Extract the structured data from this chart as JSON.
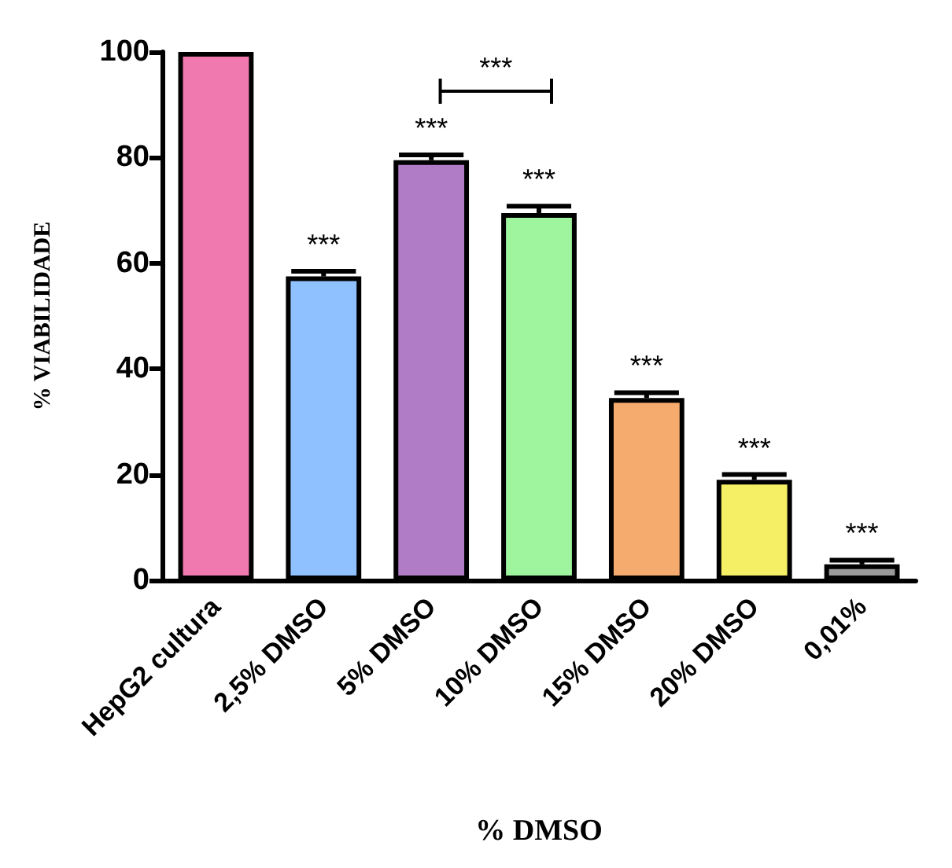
{
  "chart_data": {
    "type": "bar",
    "xlabel": "% DMSO",
    "ylabel": "% VIABILIDADE",
    "categories": [
      "HepG2 cultura",
      "2,5% DMSO",
      "5% DMSO",
      "10% DMSO",
      "15% DMSO",
      "20% DMSO",
      "0,01%"
    ],
    "values": [
      100,
      57.5,
      79.5,
      69.5,
      34.5,
      19,
      3
    ],
    "colors": [
      "#f07ab0",
      "#8fc0ff",
      "#b07cc6",
      "#9ef59e",
      "#f5aa6e",
      "#f5ef66",
      "#9a9a9a"
    ],
    "errors": [
      null,
      [
        57.5,
        58.5
      ],
      [
        79.5,
        80.5
      ],
      [
        69.5,
        70.8
      ],
      [
        34.5,
        35.5
      ],
      [
        19,
        20
      ],
      [
        3,
        3.8
      ]
    ],
    "ylim": [
      0,
      100
    ],
    "yticks": [
      0,
      20,
      40,
      60,
      80,
      100
    ],
    "grid": false,
    "annotations": [
      "***",
      "***",
      "***",
      "***",
      "***",
      "***",
      "***"
    ]
  }
}
